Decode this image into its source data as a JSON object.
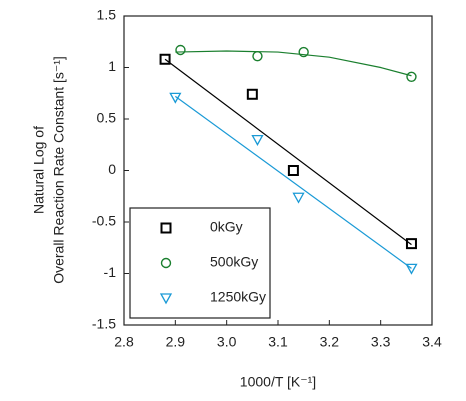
{
  "chart_data": {
    "type": "scatter",
    "xlabel": "1000/T [K⁻¹]",
    "ylabel": [
      "Natural Log of",
      "Overall Reaction Rate Constant [s⁻¹]"
    ],
    "xlim": [
      2.8,
      3.4
    ],
    "xticks": [
      2.8,
      2.9,
      {
        "value": 3,
        "label": "3.0"
      },
      3.1,
      3.2,
      3.3,
      3.4
    ],
    "ylim": [
      -1.5,
      1.5
    ],
    "yticks": [
      -1.5,
      -1,
      -0.5,
      0,
      0.5,
      1,
      1.5
    ],
    "legend": "lower left",
    "series": [
      {
        "name": "0kGy",
        "color": "#000000",
        "marker": "square",
        "x": [
          2.88,
          3.05,
          3.13,
          3.36
        ],
        "values": [
          1.08,
          0.74,
          0.0,
          -0.71
        ],
        "fit_x": [
          2.88,
          3.36
        ],
        "fit_y": [
          1.08,
          -0.72
        ]
      },
      {
        "name": "500kGy",
        "color": "#1a7f2e",
        "marker": "circle",
        "x": [
          2.91,
          3.06,
          3.15,
          3.36
        ],
        "values": [
          1.17,
          1.11,
          1.15,
          0.91
        ],
        "fit_x": [
          2.9,
          3.0,
          3.1,
          3.2,
          3.3,
          3.36
        ],
        "fit_y": [
          1.15,
          1.16,
          1.15,
          1.1,
          1.0,
          0.92
        ]
      },
      {
        "name": "1250kGy",
        "color": "#1a9ad6",
        "marker": "triangle",
        "x": [
          2.9,
          3.06,
          3.14,
          3.36
        ],
        "values": [
          0.71,
          0.3,
          -0.26,
          -0.95
        ],
        "fit_x": [
          2.9,
          3.36
        ],
        "fit_y": [
          0.72,
          -0.95
        ]
      }
    ]
  }
}
